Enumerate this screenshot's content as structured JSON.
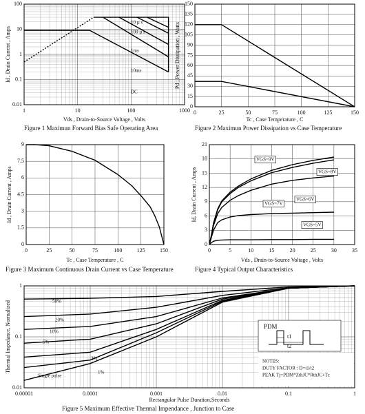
{
  "chart_data": [
    {
      "type": "line",
      "title": "Figure    1    Maximun Forward Bias Safe Operating Area",
      "xlabel": "Vds , Drain-to-Source Voltage , Volts",
      "ylabel": "Id , Drain Current , Amps",
      "xscale": "log",
      "yscale": "log",
      "grid": true,
      "color": "#000000",
      "xlim": [
        1,
        1000
      ],
      "xticks": [
        1,
        10,
        100,
        1000
      ],
      "ylim": [
        0.01,
        100
      ],
      "yticks": [
        0.01,
        0.1,
        1,
        10,
        100
      ],
      "series": [
        {
          "x": [
            1,
            20
          ],
          "values": [
            0.5,
            30
          ],
          "dashed": true
        },
        {
          "x": [
            20,
            500,
            500
          ],
          "values": [
            30,
            30,
            0.2
          ]
        },
        {
          "x": [
            1,
            17
          ],
          "values": [
            9,
            9
          ]
        },
        {
          "name": "10 µ s",
          "x": [
            200,
            500
          ],
          "values": [
            30,
            12
          ]
        },
        {
          "name": "100 µ s",
          "x": [
            130,
            500
          ],
          "values": [
            30,
            7
          ]
        },
        {
          "name": "1ms",
          "x": [
            60,
            500
          ],
          "values": [
            30,
            2.5
          ]
        },
        {
          "name": "10ms",
          "x": [
            30,
            500
          ],
          "values": [
            30,
            0.8
          ]
        },
        {
          "name": "DC",
          "x": [
            17,
            500
          ],
          "values": [
            9,
            0.2
          ]
        }
      ]
    },
    {
      "type": "line",
      "title": "Figure    2    Maximun Power Dissipation vs Case Temperature",
      "xlabel": "Tc , Case Temperature , C",
      "ylabel": "Pd , Power Dissipation , Watts",
      "grid": true,
      "color": "#000000",
      "xlim": [
        0,
        150
      ],
      "xticks": [
        0,
        25,
        50,
        75,
        100,
        125,
        150
      ],
      "ylim": [
        0,
        150
      ],
      "yticks": [
        0,
        15,
        30,
        45,
        60,
        75,
        90,
        105,
        120,
        135,
        150
      ],
      "x": [
        0,
        25,
        150
      ],
      "series": [
        {
          "values": [
            120,
            120,
            0
          ]
        },
        {
          "values": [
            37,
            37,
            0
          ]
        }
      ]
    },
    {
      "type": "line",
      "title": "Figure    3    Maximum Continuous Drain Current vs Case Temperature",
      "xlabel": "Tc , Case Temperature , C",
      "ylabel": "Id , Drain Current , Amps",
      "grid": true,
      "color": "#000000",
      "xlim": [
        0,
        150
      ],
      "xticks": [
        0,
        25,
        50,
        75,
        100,
        125,
        150
      ],
      "ylim": [
        0,
        9
      ],
      "yticks": [
        0,
        1.5,
        3,
        4.5,
        6,
        7.5,
        9
      ],
      "x": [
        0,
        10,
        25,
        50,
        75,
        100,
        115,
        125,
        135,
        140,
        145,
        150
      ],
      "series": [
        {
          "values": [
            9,
            9,
            8.9,
            8.4,
            7.6,
            6.3,
            5.3,
            4.4,
            3.4,
            2.6,
            1.6,
            0
          ]
        }
      ]
    },
    {
      "type": "line",
      "title": "Figure    4    Typical Output Characteristics",
      "xlabel": "Vds , Drain-to-Source Voltage , Volts",
      "ylabel": "Id, Drain Current , Amps",
      "grid": true,
      "color": "#000000",
      "xlim": [
        0,
        35
      ],
      "xticks": [
        0,
        5,
        10,
        15,
        20,
        25,
        30,
        35
      ],
      "ylim": [
        0,
        21
      ],
      "yticks": [
        0,
        3,
        6,
        9,
        12,
        15,
        18,
        21
      ],
      "x": [
        0,
        0.5,
        1,
        2,
        3,
        5,
        7,
        10,
        15,
        20,
        25,
        30
      ],
      "series": [
        {
          "name": "VGS=9V",
          "values": [
            0,
            2,
            4.5,
            7.5,
            9.2,
            11,
            12.3,
            13.8,
            15.6,
            16.8,
            17.7,
            18.4
          ]
        },
        {
          "name": "VGS=8V",
          "values": [
            0,
            2,
            4.4,
            7.3,
            9,
            10.7,
            12,
            13.4,
            15.1,
            16.2,
            17.1,
            17.8
          ]
        },
        {
          "name": "VGS=7V",
          "values": [
            0,
            1.9,
            4,
            6.5,
            7.8,
            9.3,
            10.3,
            11.4,
            12.7,
            13.5,
            14,
            14.4
          ]
        },
        {
          "name": "VGS=6V",
          "values": [
            0,
            1.5,
            3,
            4.6,
            5.2,
            5.8,
            6.1,
            6.3,
            6.5,
            6.6,
            6.7,
            6.8
          ]
        },
        {
          "name": "VGS=5V",
          "values": [
            0,
            0.4,
            0.7,
            0.9,
            0.95,
            1,
            1,
            1,
            1.05,
            1.05,
            1.1,
            1.1
          ]
        }
      ]
    },
    {
      "type": "line",
      "title": "Figure    5    Maximum Effective Thermal Impendance , Junction to Case",
      "xlabel": "Rectangular Pulse Duration,Seconds",
      "ylabel": "Thermal Impedance, Normalized",
      "xscale": "log",
      "yscale": "log",
      "grid": true,
      "color": "#000000",
      "xlim": [
        1e-05,
        1
      ],
      "xticks": [
        1e-05,
        0.0001,
        0.001,
        0.01,
        0.1,
        1
      ],
      "ylim": [
        0.01,
        1
      ],
      "yticks": [
        0.01,
        0.1,
        1
      ],
      "x": [
        1e-05,
        0.0001,
        0.001,
        0.01,
        0.1,
        1
      ],
      "series": [
        {
          "name": "50%",
          "values": [
            0.55,
            0.57,
            0.62,
            0.78,
            0.95,
            1
          ]
        },
        {
          "name": "20%",
          "values": [
            0.25,
            0.28,
            0.38,
            0.65,
            0.92,
            1
          ]
        },
        {
          "name": "10%",
          "values": [
            0.14,
            0.16,
            0.25,
            0.58,
            0.9,
            1
          ]
        },
        {
          "name": "5%",
          "values": [
            0.075,
            0.09,
            0.18,
            0.55,
            0.9,
            1
          ]
        },
        {
          "name": "2%",
          "values": [
            0.04,
            0.05,
            0.14,
            0.52,
            0.9,
            1
          ]
        },
        {
          "name": "1%",
          "values": [
            0.025,
            0.035,
            0.12,
            0.5,
            0.9,
            1
          ]
        },
        {
          "name": "Single pulse",
          "values": [
            0.014,
            0.03,
            0.1,
            0.48,
            0.9,
            1
          ]
        }
      ],
      "annotations": {
        "pdm": "PDM",
        "t1": "t1",
        "t2": "t2",
        "notes": "NOTES:",
        "duty": "DUTY FACTOR : D=t1/t2",
        "peak": "PEAK Tj=PDM*ZthJC*RthJC+Tc"
      }
    }
  ]
}
